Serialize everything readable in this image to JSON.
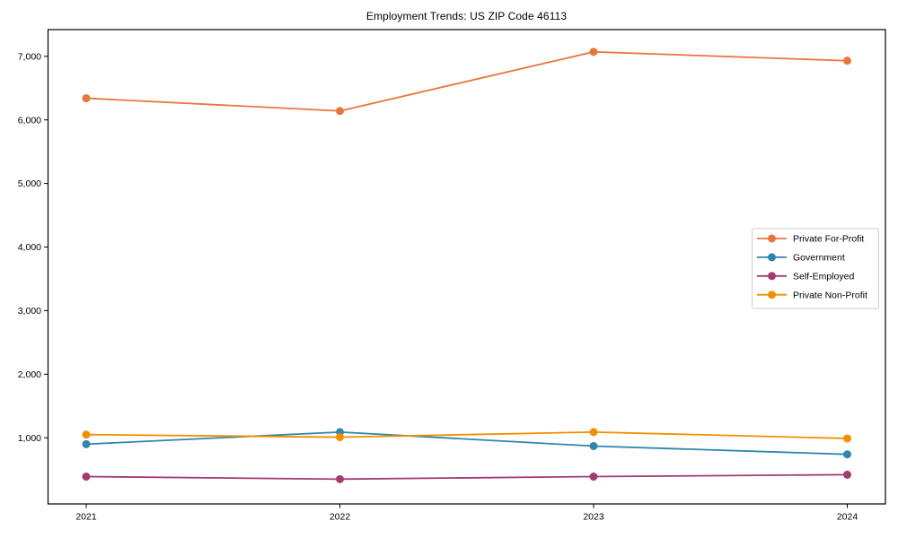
{
  "chart_data": {
    "type": "line",
    "title": "Employment Trends: US ZIP Code 46113",
    "xlabel": "",
    "ylabel": "",
    "x_tick_labels": [
      "2021",
      "2022",
      "2023",
      "2024"
    ],
    "y_ticks": [
      {
        "value": 1000,
        "label": "1,000"
      },
      {
        "value": 2000,
        "label": "2,000"
      },
      {
        "value": 3000,
        "label": "3,000"
      },
      {
        "value": 4000,
        "label": "4,000"
      },
      {
        "value": 5000,
        "label": "5,000"
      },
      {
        "value": 6000,
        "label": "6,000"
      },
      {
        "value": 7000,
        "label": "7,000"
      }
    ],
    "ylim": [
      -40,
      7420
    ],
    "grid": false,
    "legend_position": "center-right",
    "marker": "circle",
    "axis_color": "#000000",
    "legend_border_color": "#cccccc",
    "series": [
      {
        "name": "Private For-Profit",
        "color": "#E8763C",
        "values": [
          6340,
          6140,
          7070,
          6930
        ]
      },
      {
        "name": "Government",
        "color": "#2E86AB",
        "values": [
          900,
          1090,
          870,
          740
        ]
      },
      {
        "name": "Self-Employed",
        "color": "#A23B72",
        "values": [
          390,
          350,
          390,
          420
        ]
      },
      {
        "name": "Private Non-Profit",
        "color": "#F18F01",
        "values": [
          1050,
          1010,
          1090,
          990
        ]
      }
    ]
  }
}
